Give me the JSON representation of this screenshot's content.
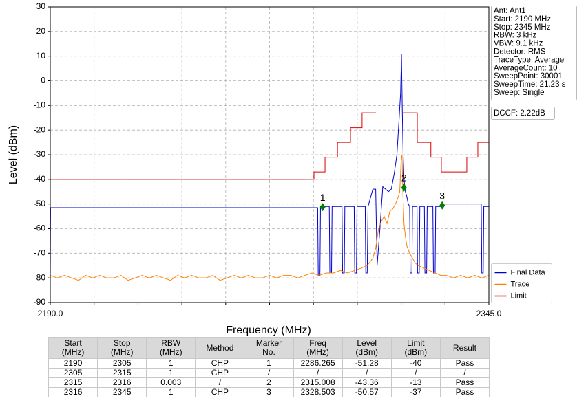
{
  "chart_data": {
    "type": "line",
    "xlabel": "Frequency (MHz)",
    "ylabel": "Level (dBm)",
    "xlim": [
      2190,
      2345
    ],
    "ylim": [
      -90,
      30
    ],
    "xticks": [
      {
        "value": 2190,
        "label": "2190.0"
      },
      {
        "value": 2345,
        "label": "2345.0"
      }
    ],
    "x_minor_ticks": [
      2205.5,
      2221,
      2236.5,
      2252,
      2267.5,
      2283,
      2298.5,
      2314,
      2329.5
    ],
    "yticks": [
      -90,
      -80,
      -70,
      -60,
      -50,
      -40,
      -30,
      -20,
      -10,
      0,
      10,
      20,
      30
    ],
    "grid": true,
    "legend": "lower right",
    "series": [
      {
        "name": "Final Data",
        "color": "#0000cc",
        "x": [
          2190,
          2190.1,
          2284.5,
          2284.7,
          2285.3,
          2285.5,
          2288.6,
          2288.8,
          2289.4,
          2289.6,
          2293.1,
          2293.3,
          2293.9,
          2294.1,
          2297.4,
          2297.6,
          2298.2,
          2298.4,
          2301.3,
          2301.5,
          2302,
          2302.3,
          2304,
          2305,
          2305.5,
          2306.5,
          2307.5,
          2308.5,
          2309.5,
          2310.5,
          2311.5,
          2312.5,
          2313.3,
          2313.8,
          2314.1,
          2314.4,
          2314.7,
          2315,
          2315.5,
          2316,
          2316.5,
          2317,
          2317.2,
          2317.8,
          2318,
          2319.6,
          2319.8,
          2320.4,
          2320.6,
          2322.2,
          2322.4,
          2323,
          2323.2,
          2325.2,
          2325.4,
          2326,
          2326.2,
          2328,
          2328.3,
          2342.3,
          2342.5,
          2343,
          2343.2,
          2345
        ],
        "values": [
          -80,
          -51.5,
          -51.5,
          -79,
          -79,
          -51,
          -51,
          -78,
          -78,
          -51,
          -51,
          -78,
          -78,
          -51,
          -51,
          -78,
          -78,
          -51,
          -51,
          -78,
          -78,
          -51,
          -44,
          -44,
          -75,
          -60,
          -43,
          -44,
          -45,
          -44,
          -38,
          -30,
          -15,
          -5,
          11,
          -12,
          -30,
          -40,
          -45,
          -47,
          -50,
          -51,
          -78,
          -78,
          -51,
          -51,
          -78,
          -78,
          -51,
          -51,
          -78,
          -78,
          -51,
          -51,
          -78,
          -78,
          -51,
          -51,
          -50,
          -50,
          -78,
          -78,
          -51,
          -51
        ]
      },
      {
        "name": "Trace",
        "color": "#ff8000",
        "x": [
          2190,
          2192.5,
          2195,
          2197.5,
          2200,
          2202.5,
          2205,
          2207.5,
          2210,
          2212.5,
          2215,
          2217.5,
          2220,
          2222.5,
          2225,
          2227.5,
          2230,
          2232.5,
          2235,
          2237.5,
          2240,
          2242.5,
          2245,
          2247.5,
          2250,
          2252.5,
          2255,
          2257.5,
          2260,
          2262.5,
          2265,
          2267.5,
          2270,
          2272.5,
          2275,
          2277.5,
          2280,
          2282.5,
          2285,
          2287.5,
          2290,
          2292.5,
          2295,
          2297.5,
          2300,
          2302,
          2304,
          2305,
          2306,
          2307,
          2308,
          2309,
          2310,
          2311,
          2312,
          2313,
          2313.5,
          2314,
          2314.3,
          2314.6,
          2315,
          2315.5,
          2316,
          2317,
          2318,
          2319,
          2320,
          2322,
          2324,
          2326,
          2328,
          2330,
          2332.5,
          2335,
          2337.5,
          2340,
          2342.5,
          2345
        ],
        "values": [
          -79,
          -80,
          -79,
          -80,
          -81,
          -79,
          -80,
          -79,
          -80,
          -80,
          -79,
          -81,
          -80,
          -79,
          -80,
          -79,
          -80,
          -81,
          -79,
          -80,
          -79,
          -80,
          -80,
          -79,
          -81,
          -80,
          -79,
          -80,
          -79,
          -80,
          -80,
          -79,
          -80,
          -79,
          -79,
          -80,
          -79,
          -78,
          -79,
          -78,
          -78,
          -77,
          -78,
          -77,
          -76,
          -75,
          -72,
          -68,
          -60,
          -57,
          -55,
          -58,
          -53,
          -52,
          -50,
          -47,
          -45,
          -32,
          -30,
          -45,
          -58,
          -63,
          -67,
          -70,
          -72,
          -74,
          -75,
          -76,
          -77,
          -78,
          -79,
          -79,
          -80,
          -79,
          -80,
          -79,
          -80,
          -79
        ]
      },
      {
        "name": "Limit",
        "color": "#dd0000",
        "x": [
          2190,
          2283.2,
          2283.2,
          2287.1,
          2287.1,
          2291.5,
          2291.5,
          2296.1,
          2296.1,
          2300.2,
          2300.2,
          2305.1,
          2305.1,
          2314.8,
          2319.7,
          2319.7,
          2324.5,
          2324.5,
          2328.2,
          2328.2,
          2337.2,
          2337.2,
          2341.1,
          2341.1,
          2345
        ],
        "values": [
          -40,
          -40,
          -37,
          -37,
          -31,
          -31,
          -25,
          -25,
          -19,
          -19,
          -13,
          -13,
          null,
          -13,
          -13,
          -25,
          -25,
          -31,
          -31,
          -37,
          -37,
          -31,
          -31,
          -25,
          -25
        ]
      }
    ],
    "markers": [
      {
        "label": "1",
        "x": 2286.265,
        "y": -51.28,
        "color": "#008000"
      },
      {
        "label": "2",
        "x": 2315.008,
        "y": -43.36,
        "color": "#008000"
      },
      {
        "label": "3",
        "x": 2328.503,
        "y": -50.57,
        "color": "#008000"
      }
    ],
    "info": [
      "Ant: Ant1",
      "Start: 2190 MHz",
      "Stop: 2345 MHz",
      "RBW: 3 kHz",
      "VBW: 9.1 kHz",
      "Detector: RMS",
      "TraceType: Average",
      "AverageCount: 10",
      "SweepPoint: 30001",
      "SweepTime: 21.23 s",
      "Sweep: Single"
    ],
    "dccf": "DCCF: 2.22dB"
  },
  "table": {
    "header": [
      [
        "Start",
        "(MHz)"
      ],
      [
        "Stop",
        "(MHz)"
      ],
      [
        "RBW",
        "(MHz)"
      ],
      [
        "Method"
      ],
      [
        "Marker",
        "No."
      ],
      [
        "Freq",
        "(MHz)"
      ],
      [
        "Level",
        "(dBm)"
      ],
      [
        "Limit",
        "(dBm)"
      ],
      [
        "Result"
      ]
    ],
    "rows": [
      [
        "2190",
        "2305",
        "1",
        "CHP",
        "1",
        "2286.265",
        "-51.28",
        "-40",
        "Pass"
      ],
      [
        "2305",
        "2315",
        "1",
        "CHP",
        "/",
        "/",
        "/",
        "/",
        "/"
      ],
      [
        "2315",
        "2316",
        "0.003",
        "/",
        "2",
        "2315.008",
        "-43.36",
        "-13",
        "Pass"
      ],
      [
        "2316",
        "2345",
        "1",
        "CHP",
        "3",
        "2328.503",
        "-50.57",
        "-37",
        "Pass"
      ]
    ]
  }
}
